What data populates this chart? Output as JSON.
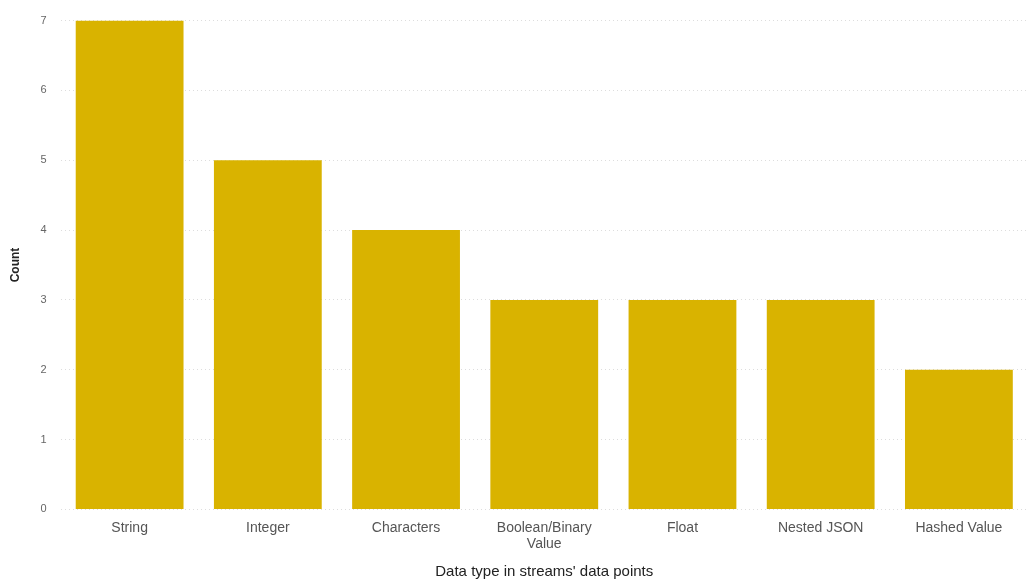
{
  "chart_data": {
    "type": "bar",
    "xlabel": "Data type in streams' data points",
    "ylabel": "Count",
    "categories": [
      "String",
      "Integer",
      "Characters",
      "Boolean/Binary Value",
      "Float",
      "Nested JSON",
      "Hashed Value"
    ],
    "values": [
      7,
      5,
      4,
      3,
      3,
      3,
      2
    ],
    "color": "#d9b300",
    "ylim": [
      0,
      7
    ],
    "yticks": [
      0,
      1,
      2,
      3,
      4,
      5,
      6,
      7
    ],
    "grid": "y",
    "legend": false
  }
}
